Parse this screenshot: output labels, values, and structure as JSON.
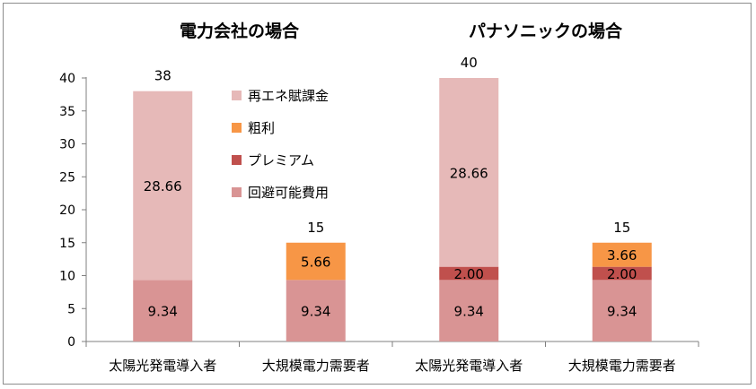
{
  "colors": {
    "avoided_cost": "#d99494",
    "premium": "#c0504d",
    "gross_profit": "#f79646",
    "renewable_levy": "#e6b9b8",
    "axis": "#7f7f7f"
  },
  "chart_data": {
    "type": "bar",
    "stacked": true,
    "ylim": [
      0,
      40
    ],
    "yticks": [
      0,
      5,
      10,
      15,
      20,
      25,
      30,
      35,
      40
    ],
    "legend_position": "top-left-inside",
    "groups": [
      {
        "title": "電力会社の場合"
      },
      {
        "title": "パナソニックの場合"
      }
    ],
    "categories": [
      "太陽光発電導入者",
      "大規模電力需要者",
      "太陽光発電導入者",
      "大規模電力需要者"
    ],
    "totals": [
      "38",
      "15",
      "40",
      "15"
    ],
    "series": [
      {
        "name": "回避可能費用",
        "color_key": "avoided_cost",
        "values": [
          9.34,
          9.34,
          9.34,
          9.34
        ],
        "labels": [
          "9.34",
          "9.34",
          "9.34",
          "9.34"
        ]
      },
      {
        "name": "プレミアム",
        "color_key": "premium",
        "values": [
          0,
          0,
          2.0,
          2.0
        ],
        "labels": [
          "",
          "",
          "2.00",
          "2.00"
        ]
      },
      {
        "name": "粗利",
        "color_key": "gross_profit",
        "values": [
          0,
          5.66,
          0,
          3.66
        ],
        "labels": [
          "",
          "5.66",
          "",
          "3.66"
        ]
      },
      {
        "name": "再エネ賦課金",
        "color_key": "renewable_levy",
        "values": [
          28.66,
          0,
          28.66,
          0
        ],
        "labels": [
          "28.66",
          "",
          "28.66",
          ""
        ]
      }
    ],
    "legend_order": [
      3,
      2,
      1,
      0
    ]
  }
}
